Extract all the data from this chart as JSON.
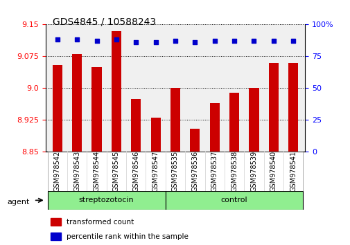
{
  "title": "GDS4845 / 10588243",
  "categories": [
    "GSM978542",
    "GSM978543",
    "GSM978544",
    "GSM978545",
    "GSM978546",
    "GSM978547",
    "GSM978535",
    "GSM978536",
    "GSM978537",
    "GSM978538",
    "GSM978539",
    "GSM978540",
    "GSM978541"
  ],
  "bar_values": [
    9.055,
    9.08,
    9.05,
    9.135,
    8.975,
    8.93,
    9.0,
    8.905,
    8.965,
    8.99,
    9.0,
    9.06,
    9.06
  ],
  "percentile_values": [
    88,
    88,
    87,
    88,
    86,
    86,
    87,
    86,
    87,
    87,
    87,
    87,
    87
  ],
  "bar_color": "#cc0000",
  "percentile_color": "#0000cc",
  "ylim_left": [
    8.85,
    9.15
  ],
  "ylim_right": [
    0,
    100
  ],
  "yticks_left": [
    8.85,
    8.925,
    9.0,
    9.075,
    9.15
  ],
  "yticks_right": [
    0,
    25,
    50,
    75,
    100
  ],
  "group1_label": "streptozotocin",
  "group2_label": "control",
  "group1_count": 6,
  "group2_count": 7,
  "agent_label": "agent",
  "legend_bar_label": "transformed count",
  "legend_pct_label": "percentile rank within the sample",
  "group1_color": "#90ee90",
  "group2_color": "#90ee90",
  "bar_baseline": 8.85,
  "background_color": "#ffffff",
  "plot_bg_color": "#f0f0f0"
}
